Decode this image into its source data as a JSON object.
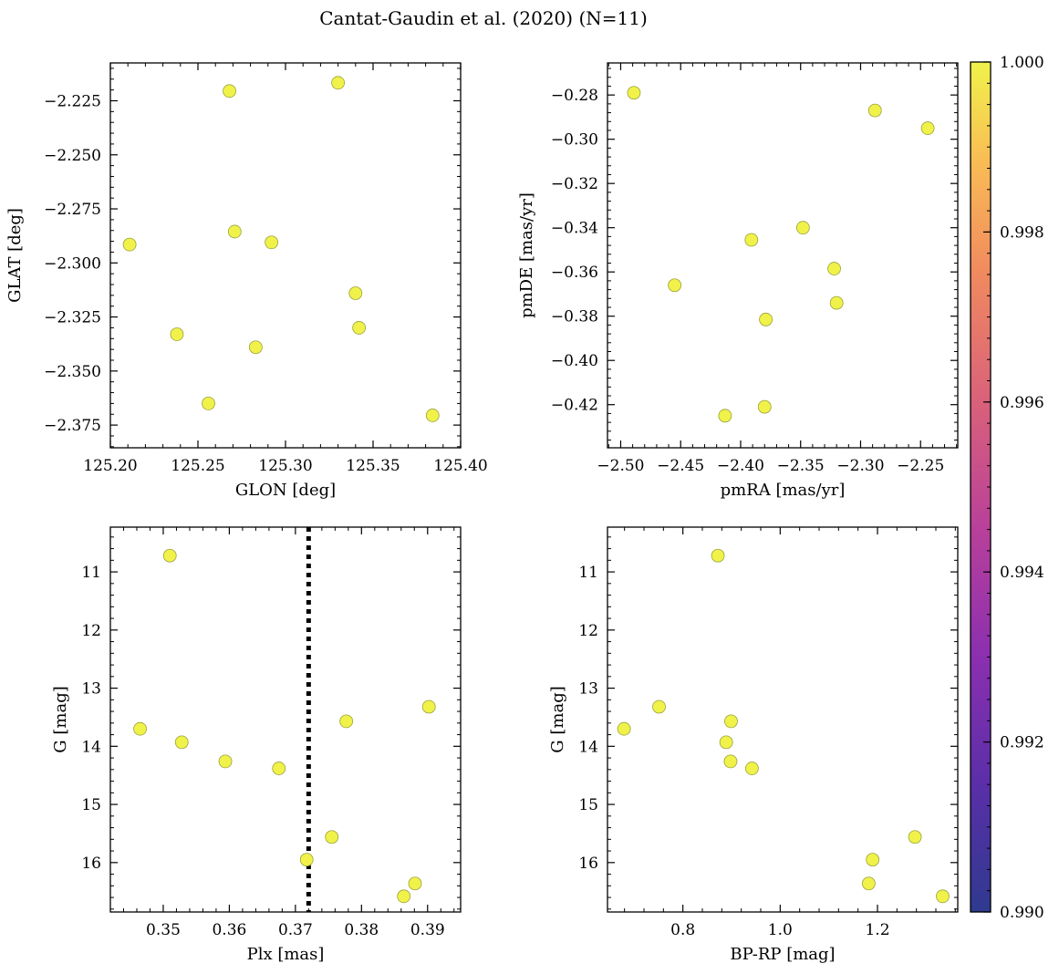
{
  "figure": {
    "title": "Cantat-Gaudin et al. (2020) (N=11)"
  },
  "colors": {
    "point_fill": "#f0f24a",
    "point_edge": "#9aa23a",
    "axis": "#000000",
    "reference_line": "#000000"
  },
  "colorbar": {
    "min": 0.99,
    "max": 1.0,
    "ticks": [
      "0.990",
      "0.992",
      "0.994",
      "0.996",
      "0.998",
      "1.000"
    ],
    "tick_values": [
      0.99,
      0.992,
      0.994,
      0.996,
      0.998,
      1.0
    ],
    "colormap": "plasma"
  },
  "chart_data": [
    {
      "id": "glon-glat",
      "type": "scatter",
      "xlabel": "GLON [deg]",
      "ylabel": "GLAT [deg]",
      "xlim": [
        125.2,
        125.4
      ],
      "ylim": [
        -2.3855,
        -2.2075
      ],
      "y_inverted": false,
      "xticks": [
        125.2,
        125.25,
        125.3,
        125.35,
        125.4
      ],
      "xtick_labels": [
        "125.20",
        "125.25",
        "125.30",
        "125.35",
        "125.40"
      ],
      "yticks": [
        -2.225,
        -2.25,
        -2.275,
        -2.3,
        -2.325,
        -2.35,
        -2.375
      ],
      "ytick_labels": [
        "−2.225",
        "−2.250",
        "−2.275",
        "−2.300",
        "−2.325",
        "−2.350",
        "−2.375"
      ],
      "x": [
        125.268,
        125.33,
        125.211,
        125.271,
        125.292,
        125.34,
        125.238,
        125.342,
        125.283,
        125.256,
        125.384
      ],
      "y": [
        -2.2205,
        -2.2167,
        -2.2915,
        -2.2855,
        -2.2905,
        -2.314,
        -2.333,
        -2.33,
        -2.339,
        -2.365,
        -2.3705
      ],
      "color_values": [
        1,
        1,
        1,
        1,
        1,
        1,
        1,
        1,
        1,
        1,
        1
      ]
    },
    {
      "id": "pmra-pmde",
      "type": "scatter",
      "xlabel": "pmRA [mas/yr]",
      "ylabel": "pmDE [mas/yr]",
      "xlim": [
        -2.511,
        -2.219
      ],
      "ylim": [
        -0.4395,
        -0.2655
      ],
      "y_inverted": false,
      "xticks": [
        -2.5,
        -2.45,
        -2.4,
        -2.35,
        -2.3,
        -2.25
      ],
      "xtick_labels": [
        "−2.50",
        "−2.45",
        "−2.40",
        "−2.35",
        "−2.30",
        "−2.25"
      ],
      "yticks": [
        -0.28,
        -0.3,
        -0.32,
        -0.34,
        -0.36,
        -0.38,
        -0.4,
        -0.42
      ],
      "ytick_labels": [
        "−0.28",
        "−0.30",
        "−0.32",
        "−0.34",
        "−0.36",
        "−0.38",
        "−0.40",
        "−0.42"
      ],
      "x": [
        -2.489,
        -2.288,
        -2.244,
        -2.348,
        -2.391,
        -2.455,
        -2.322,
        -2.32,
        -2.379,
        -2.38,
        -2.413
      ],
      "y": [
        -0.279,
        -0.287,
        -0.295,
        -0.34,
        -0.3455,
        -0.366,
        -0.3585,
        -0.374,
        -0.3815,
        -0.421,
        -0.425
      ],
      "color_values": [
        1,
        1,
        1,
        1,
        1,
        1,
        1,
        1,
        1,
        1,
        1
      ]
    },
    {
      "id": "plx-g",
      "type": "scatter",
      "xlabel": "Plx [mas]",
      "ylabel": "G [mag]",
      "xlim": [
        0.342,
        0.395
      ],
      "ylim": [
        16.85,
        10.23
      ],
      "y_inverted": true,
      "xticks": [
        0.35,
        0.36,
        0.37,
        0.38,
        0.39
      ],
      "xtick_labels": [
        "0.35",
        "0.36",
        "0.37",
        "0.38",
        "0.39"
      ],
      "yticks": [
        11,
        12,
        13,
        14,
        15,
        16
      ],
      "ytick_labels": [
        "11",
        "12",
        "13",
        "14",
        "15",
        "16"
      ],
      "x": [
        0.351,
        0.3465,
        0.3528,
        0.3594,
        0.3675,
        0.3777,
        0.3902,
        0.3755,
        0.3717,
        0.3864,
        0.3881
      ],
      "y": [
        10.72,
        13.7,
        13.93,
        14.26,
        14.38,
        13.57,
        13.32,
        15.56,
        15.95,
        16.58,
        16.36
      ],
      "reference_line": {
        "axis": "x",
        "value": 0.372,
        "style": "dotted"
      },
      "color_values": [
        1,
        1,
        1,
        1,
        1,
        1,
        1,
        1,
        1,
        1,
        1
      ]
    },
    {
      "id": "bprp-g",
      "type": "scatter",
      "xlabel": "BP-RP [mag]",
      "ylabel": "G [mag]",
      "xlim": [
        0.645,
        1.365
      ],
      "ylim": [
        16.85,
        10.23
      ],
      "y_inverted": true,
      "xticks": [
        0.8,
        1.0,
        1.2
      ],
      "xtick_labels": [
        "0.8",
        "1.0",
        "1.2"
      ],
      "yticks": [
        11,
        12,
        13,
        14,
        15,
        16
      ],
      "ytick_labels": [
        "11",
        "12",
        "13",
        "14",
        "15",
        "16"
      ],
      "x": [
        0.872,
        0.679,
        0.751,
        0.899,
        0.889,
        0.898,
        0.942,
        1.277,
        1.19,
        1.182,
        1.334
      ],
      "y": [
        10.72,
        13.7,
        13.32,
        13.57,
        13.93,
        14.26,
        14.38,
        15.56,
        15.95,
        16.36,
        16.58
      ],
      "color_values": [
        1,
        1,
        1,
        1,
        1,
        1,
        1,
        1,
        1,
        1,
        1
      ]
    }
  ]
}
